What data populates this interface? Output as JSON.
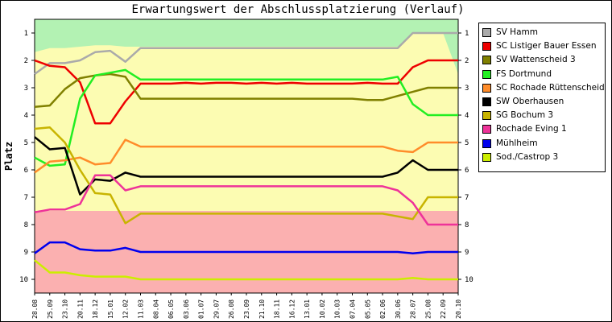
{
  "chart_data": {
    "type": "line",
    "title": "Erwartungswert der Abschlussplatzierung (Verlauf)",
    "ylabel": "Platz",
    "xlabel": "",
    "y_inverted": true,
    "ylim": [
      0.5,
      10.5
    ],
    "yticks": [
      1,
      2,
      3,
      4,
      5,
      6,
      7,
      8,
      9,
      10
    ],
    "categories": [
      "28.08",
      "25.09",
      "23.10",
      "20.11",
      "18.12",
      "15.01",
      "12.02",
      "11.03",
      "08.04",
      "06.05",
      "03.06",
      "01.07",
      "29.07",
      "26.08",
      "23.09",
      "21.10",
      "18.11",
      "16.12",
      "13.01",
      "10.02",
      "10.03",
      "07.04",
      "05.05",
      "02.06",
      "30.06",
      "28.07",
      "25.08",
      "22.09",
      "20.10"
    ],
    "zones": [
      {
        "name": "promotion",
        "from": 0.5,
        "to_series": "upper",
        "color": "#b3f2b3"
      },
      {
        "name": "mid",
        "from_series": "upper",
        "to": 7.5,
        "color": "#fcfcb2"
      },
      {
        "name": "relegation",
        "from": 7.5,
        "to": 10.5,
        "color": "#fbb0b0"
      }
    ],
    "upper_zone_boundary": [
      1.7,
      1.55,
      1.55,
      1.5,
      1.45,
      1.45,
      1.5,
      1.5,
      1.5,
      1.5,
      1.5,
      1.5,
      1.5,
      1.5,
      1.5,
      1.5,
      1.5,
      1.5,
      1.5,
      1.5,
      1.5,
      1.5,
      1.5,
      1.5,
      1.5,
      1.0,
      1.0,
      1.0,
      2.5
    ],
    "series": [
      {
        "name": "SV Hamm",
        "color": "#aaaaaa",
        "values": [
          2.5,
          2.1,
          2.1,
          2.0,
          1.7,
          1.65,
          2.05,
          1.55,
          1.55,
          1.55,
          1.55,
          1.55,
          1.55,
          1.55,
          1.55,
          1.55,
          1.55,
          1.55,
          1.55,
          1.55,
          1.55,
          1.55,
          1.55,
          1.55,
          1.55,
          1.0,
          1.0,
          1.0,
          1.0
        ]
      },
      {
        "name": "SC Listiger Bauer Essen",
        "color": "#ee0000",
        "values": [
          2.0,
          2.2,
          2.25,
          2.8,
          4.3,
          4.3,
          3.5,
          2.85,
          2.85,
          2.85,
          2.82,
          2.85,
          2.82,
          2.82,
          2.85,
          2.82,
          2.85,
          2.82,
          2.85,
          2.85,
          2.85,
          2.85,
          2.82,
          2.85,
          2.85,
          2.25,
          2.0,
          2.0,
          2.0
        ]
      },
      {
        "name": "SV Wattenscheid 3",
        "color": "#808000",
        "values": [
          3.7,
          3.65,
          3.05,
          2.65,
          2.55,
          2.5,
          2.6,
          3.4,
          3.4,
          3.4,
          3.4,
          3.4,
          3.4,
          3.4,
          3.4,
          3.4,
          3.4,
          3.4,
          3.4,
          3.4,
          3.4,
          3.4,
          3.45,
          3.45,
          3.3,
          3.15,
          3.0,
          3.0,
          3.0
        ]
      },
      {
        "name": "FS Dortmund",
        "color": "#22ee22",
        "values": [
          5.55,
          5.85,
          5.8,
          3.4,
          2.55,
          2.45,
          2.35,
          2.7,
          2.7,
          2.7,
          2.7,
          2.7,
          2.7,
          2.7,
          2.7,
          2.7,
          2.7,
          2.7,
          2.7,
          2.7,
          2.7,
          2.7,
          2.7,
          2.7,
          2.6,
          3.6,
          4.0,
          4.0,
          4.0
        ]
      },
      {
        "name": "SC Rochade Rüttenscheid",
        "color": "#ff8c2a",
        "values": [
          6.1,
          5.7,
          5.65,
          5.55,
          5.8,
          5.75,
          4.9,
          5.15,
          5.15,
          5.15,
          5.15,
          5.15,
          5.15,
          5.15,
          5.15,
          5.15,
          5.15,
          5.15,
          5.15,
          5.15,
          5.15,
          5.15,
          5.15,
          5.15,
          5.3,
          5.35,
          5.0,
          5.0,
          5.0
        ]
      },
      {
        "name": "SW Oberhausen",
        "color": "#000000",
        "values": [
          4.8,
          5.25,
          5.2,
          6.9,
          6.35,
          6.4,
          6.1,
          6.25,
          6.25,
          6.25,
          6.25,
          6.25,
          6.25,
          6.25,
          6.25,
          6.25,
          6.25,
          6.25,
          6.25,
          6.25,
          6.25,
          6.25,
          6.25,
          6.25,
          6.1,
          5.65,
          6.0,
          6.0,
          6.0
        ]
      },
      {
        "name": "SG Bochum 3",
        "color": "#c8b400",
        "values": [
          4.5,
          4.45,
          5.0,
          6.0,
          6.85,
          6.9,
          7.95,
          7.6,
          7.6,
          7.6,
          7.6,
          7.6,
          7.6,
          7.6,
          7.6,
          7.6,
          7.6,
          7.6,
          7.6,
          7.6,
          7.6,
          7.6,
          7.6,
          7.6,
          7.7,
          7.8,
          7.0,
          7.0,
          7.0
        ]
      },
      {
        "name": "Rochade Eving 1",
        "color": "#ee3399",
        "values": [
          7.55,
          7.45,
          7.45,
          7.25,
          6.2,
          6.2,
          6.75,
          6.6,
          6.6,
          6.6,
          6.6,
          6.6,
          6.6,
          6.6,
          6.6,
          6.6,
          6.6,
          6.6,
          6.6,
          6.6,
          6.6,
          6.6,
          6.6,
          6.6,
          6.75,
          7.2,
          8.0,
          8.0,
          8.0
        ]
      },
      {
        "name": "Mühlheim",
        "color": "#0000ee",
        "values": [
          9.05,
          8.65,
          8.65,
          8.9,
          8.95,
          8.95,
          8.85,
          9.0,
          9.0,
          9.0,
          9.0,
          9.0,
          9.0,
          9.0,
          9.0,
          9.0,
          9.0,
          9.0,
          9.0,
          9.0,
          9.0,
          9.0,
          9.0,
          9.0,
          9.0,
          9.05,
          9.0,
          9.0,
          9.0
        ]
      },
      {
        "name": "Sod./Castrop 3",
        "color": "#ccee00",
        "values": [
          9.3,
          9.75,
          9.75,
          9.85,
          9.9,
          9.9,
          9.9,
          10.0,
          10.0,
          10.0,
          10.0,
          10.0,
          10.0,
          10.0,
          10.0,
          10.0,
          10.0,
          10.0,
          10.0,
          10.0,
          10.0,
          10.0,
          10.0,
          10.0,
          10.0,
          9.95,
          10.0,
          10.0,
          10.0
        ]
      }
    ]
  }
}
